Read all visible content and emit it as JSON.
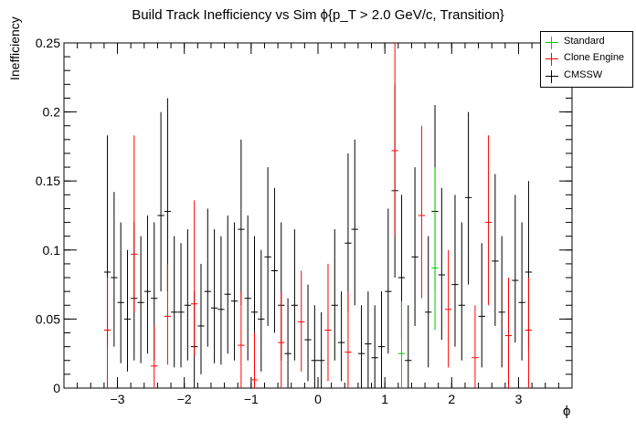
{
  "chart_data": {
    "type": "scatter",
    "title": "Build Track Inefficiency vs Sim    ϕ{p_T > 2.0 GeV/c, Transition}",
    "xlabel": "ϕ",
    "ylabel": "Inefficiency",
    "xlim": [
      -3.8,
      3.8
    ],
    "ylim": [
      0,
      0.25
    ],
    "xticks": [
      "−3",
      "−2",
      "−1",
      "0",
      "1",
      "2",
      "3"
    ],
    "yticks": [
      "0",
      "0.05",
      "0.1",
      "0.15",
      "0.2",
      "0.25"
    ],
    "legend_position": "top-right",
    "bin_width": 0.1,
    "series": [
      {
        "name": "Standard",
        "color": "#00cc00",
        "points": [
          {
            "x": 1.25,
            "y": 0.025,
            "lo": 0.0,
            "hi": 0.063
          },
          {
            "x": 1.75,
            "y": 0.087,
            "lo": 0.042,
            "hi": 0.16
          }
        ]
      },
      {
        "name": "Clone Engine",
        "color": "#ff0000",
        "points": [
          {
            "x": -3.15,
            "y": 0.042,
            "lo": 0.0,
            "hi": 0.08
          },
          {
            "x": -2.75,
            "y": 0.097,
            "lo": 0.055,
            "hi": 0.183
          },
          {
            "x": -2.45,
            "y": 0.016,
            "lo": 0.0,
            "hi": 0.045
          },
          {
            "x": -2.25,
            "y": 0.052,
            "lo": 0.017,
            "hi": 0.09
          },
          {
            "x": -1.85,
            "y": 0.061,
            "lo": 0.023,
            "hi": 0.136
          },
          {
            "x": -1.15,
            "y": 0.031,
            "lo": 0.0,
            "hi": 0.07
          },
          {
            "x": -0.95,
            "y": 0.006,
            "lo": 0.0,
            "hi": 0.04
          },
          {
            "x": -0.55,
            "y": 0.033,
            "lo": 0.0,
            "hi": 0.07
          },
          {
            "x": -0.25,
            "y": 0.048,
            "lo": 0.012,
            "hi": 0.085
          },
          {
            "x": 0.15,
            "y": 0.042,
            "lo": 0.005,
            "hi": 0.09
          },
          {
            "x": 0.45,
            "y": 0.026,
            "lo": 0.0,
            "hi": 0.07
          },
          {
            "x": 1.15,
            "y": 0.172,
            "lo": 0.11,
            "hi": 0.25
          },
          {
            "x": 1.55,
            "y": 0.125,
            "lo": 0.065,
            "hi": 0.19
          },
          {
            "x": 1.95,
            "y": 0.057,
            "lo": 0.015,
            "hi": 0.1
          },
          {
            "x": 2.35,
            "y": 0.022,
            "lo": 0.0,
            "hi": 0.06
          },
          {
            "x": 2.55,
            "y": 0.12,
            "lo": 0.06,
            "hi": 0.183
          },
          {
            "x": 2.85,
            "y": 0.038,
            "lo": 0.0,
            "hi": 0.08
          },
          {
            "x": 3.15,
            "y": 0.042,
            "lo": 0.0,
            "hi": 0.08
          }
        ]
      },
      {
        "name": "CMSSW",
        "color": "#000000",
        "points": [
          {
            "x": -3.15,
            "y": 0.084,
            "lo": 0.03,
            "hi": 0.183
          },
          {
            "x": -3.05,
            "y": 0.08,
            "lo": 0.03,
            "hi": 0.142
          },
          {
            "x": -2.95,
            "y": 0.062,
            "lo": 0.018,
            "hi": 0.12
          },
          {
            "x": -2.85,
            "y": 0.05,
            "lo": 0.012,
            "hi": 0.1
          },
          {
            "x": -2.75,
            "y": 0.065,
            "lo": 0.02,
            "hi": 0.12
          },
          {
            "x": -2.65,
            "y": 0.062,
            "lo": 0.018,
            "hi": 0.11
          },
          {
            "x": -2.55,
            "y": 0.07,
            "lo": 0.025,
            "hi": 0.125
          },
          {
            "x": -2.45,
            "y": 0.065,
            "lo": 0.02,
            "hi": 0.12
          },
          {
            "x": -2.35,
            "y": 0.125,
            "lo": 0.07,
            "hi": 0.2
          },
          {
            "x": -2.25,
            "y": 0.128,
            "lo": 0.07,
            "hi": 0.21
          },
          {
            "x": -2.15,
            "y": 0.055,
            "lo": 0.015,
            "hi": 0.11
          },
          {
            "x": -2.05,
            "y": 0.055,
            "lo": 0.015,
            "hi": 0.105
          },
          {
            "x": -1.95,
            "y": 0.06,
            "lo": 0.02,
            "hi": 0.115
          },
          {
            "x": -1.85,
            "y": 0.03,
            "lo": 0.0,
            "hi": 0.07
          },
          {
            "x": -1.75,
            "y": 0.045,
            "lo": 0.01,
            "hi": 0.09
          },
          {
            "x": -1.65,
            "y": 0.07,
            "lo": 0.03,
            "hi": 0.13
          },
          {
            "x": -1.55,
            "y": 0.058,
            "lo": 0.018,
            "hi": 0.115
          },
          {
            "x": -1.45,
            "y": 0.057,
            "lo": 0.017,
            "hi": 0.11
          },
          {
            "x": -1.35,
            "y": 0.068,
            "lo": 0.025,
            "hi": 0.125
          },
          {
            "x": -1.25,
            "y": 0.063,
            "lo": 0.02,
            "hi": 0.12
          },
          {
            "x": -1.15,
            "y": 0.115,
            "lo": 0.06,
            "hi": 0.18
          },
          {
            "x": -1.05,
            "y": 0.065,
            "lo": 0.02,
            "hi": 0.125
          },
          {
            "x": -0.95,
            "y": 0.055,
            "lo": 0.015,
            "hi": 0.11
          },
          {
            "x": -0.85,
            "y": 0.05,
            "lo": 0.012,
            "hi": 0.1
          },
          {
            "x": -0.75,
            "y": 0.095,
            "lo": 0.045,
            "hi": 0.16
          },
          {
            "x": -0.65,
            "y": 0.085,
            "lo": 0.04,
            "hi": 0.145
          },
          {
            "x": -0.55,
            "y": 0.06,
            "lo": 0.02,
            "hi": 0.12
          },
          {
            "x": -0.45,
            "y": 0.025,
            "lo": 0.0,
            "hi": 0.065
          },
          {
            "x": -0.35,
            "y": 0.06,
            "lo": 0.02,
            "hi": 0.115
          },
          {
            "x": -0.15,
            "y": 0.035,
            "lo": 0.005,
            "hi": 0.075
          },
          {
            "x": -0.05,
            "y": 0.02,
            "lo": 0.0,
            "hi": 0.06
          },
          {
            "x": 0.05,
            "y": 0.02,
            "lo": 0.0,
            "hi": 0.055
          },
          {
            "x": 0.25,
            "y": 0.06,
            "lo": 0.02,
            "hi": 0.115
          },
          {
            "x": 0.35,
            "y": 0.033,
            "lo": 0.005,
            "hi": 0.07
          },
          {
            "x": 0.45,
            "y": 0.105,
            "lo": 0.055,
            "hi": 0.17
          },
          {
            "x": 0.55,
            "y": 0.115,
            "lo": 0.06,
            "hi": 0.18
          },
          {
            "x": 0.65,
            "y": 0.025,
            "lo": 0.0,
            "hi": 0.06
          },
          {
            "x": 0.75,
            "y": 0.032,
            "lo": 0.0,
            "hi": 0.07
          },
          {
            "x": 0.85,
            "y": 0.022,
            "lo": 0.0,
            "hi": 0.06
          },
          {
            "x": 0.95,
            "y": 0.03,
            "lo": 0.0,
            "hi": 0.07
          },
          {
            "x": 1.05,
            "y": 0.07,
            "lo": 0.025,
            "hi": 0.13
          },
          {
            "x": 1.15,
            "y": 0.143,
            "lo": 0.08,
            "hi": 0.22
          },
          {
            "x": 1.25,
            "y": 0.08,
            "lo": 0.035,
            "hi": 0.14
          },
          {
            "x": 1.35,
            "y": 0.02,
            "lo": 0.0,
            "hi": 0.06
          },
          {
            "x": 1.45,
            "y": 0.095,
            "lo": 0.045,
            "hi": 0.16
          },
          {
            "x": 1.65,
            "y": 0.055,
            "lo": 0.015,
            "hi": 0.11
          },
          {
            "x": 1.75,
            "y": 0.128,
            "lo": 0.07,
            "hi": 0.205
          },
          {
            "x": 1.85,
            "y": 0.082,
            "lo": 0.035,
            "hi": 0.145
          },
          {
            "x": 2.05,
            "y": 0.075,
            "lo": 0.03,
            "hi": 0.14
          },
          {
            "x": 2.15,
            "y": 0.06,
            "lo": 0.02,
            "hi": 0.12
          },
          {
            "x": 2.25,
            "y": 0.138,
            "lo": 0.075,
            "hi": 0.2
          },
          {
            "x": 2.45,
            "y": 0.052,
            "lo": 0.015,
            "hi": 0.105
          },
          {
            "x": 2.65,
            "y": 0.092,
            "lo": 0.045,
            "hi": 0.155
          },
          {
            "x": 2.75,
            "y": 0.055,
            "lo": 0.015,
            "hi": 0.11
          },
          {
            "x": 2.95,
            "y": 0.078,
            "lo": 0.033,
            "hi": 0.14
          },
          {
            "x": 3.05,
            "y": 0.062,
            "lo": 0.02,
            "hi": 0.12
          },
          {
            "x": 3.15,
            "y": 0.084,
            "lo": 0.03,
            "hi": 0.15
          }
        ]
      }
    ]
  }
}
